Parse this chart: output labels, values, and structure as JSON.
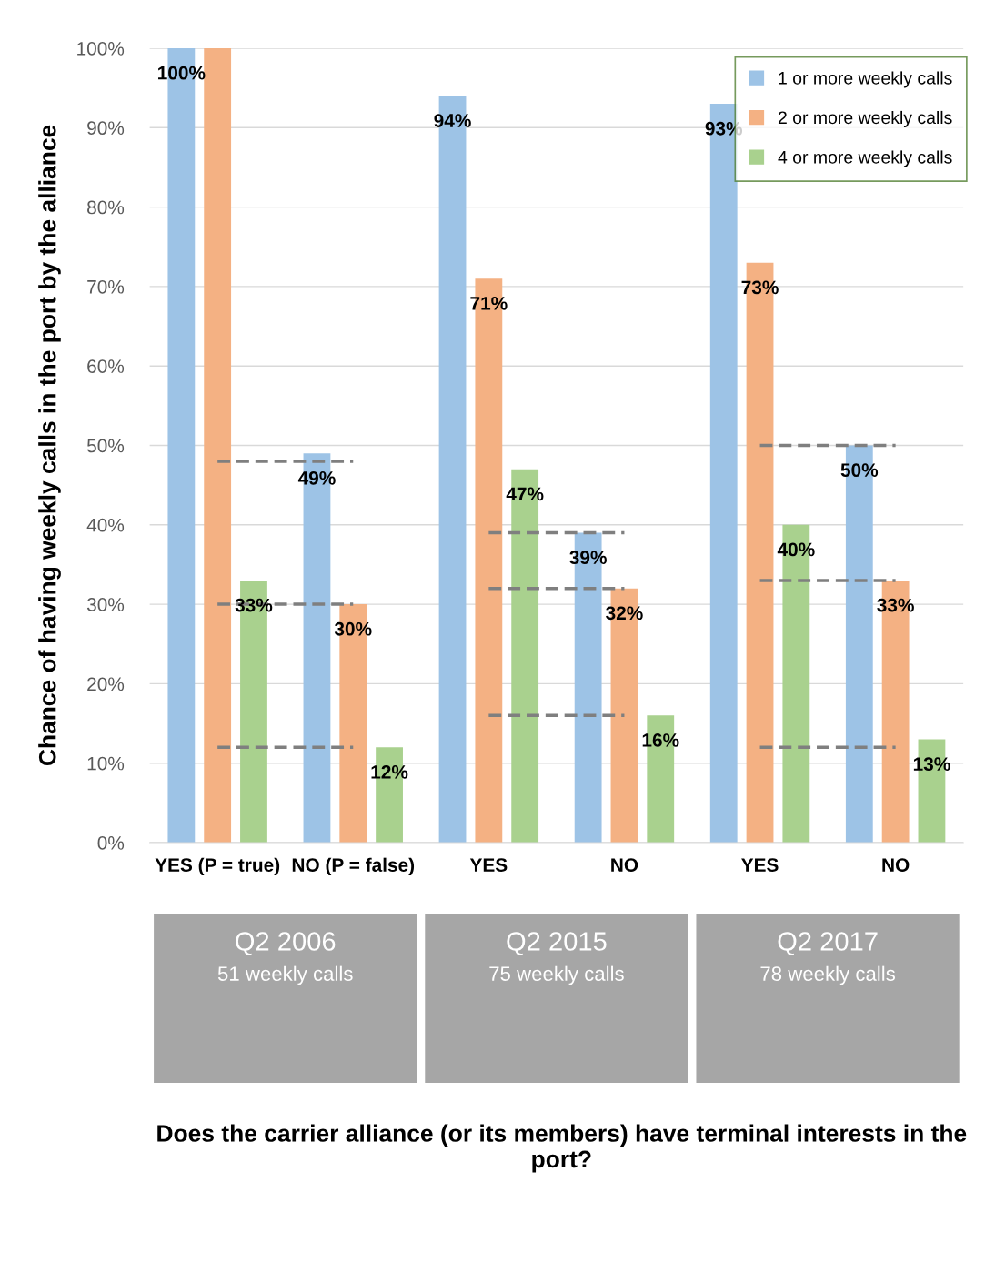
{
  "chart_data": {
    "type": "bar",
    "ylabel": "Chance of having weekly calls in the port by the alliance",
    "categories": [
      "YES (P = true)",
      "NO (P = false)",
      "YES",
      "NO",
      "YES",
      "NO"
    ],
    "series": [
      {
        "name": "1 or more weekly calls",
        "color": "#9dc3e6",
        "values": [
          100,
          49,
          94,
          39,
          93,
          50
        ],
        "value_labels": [
          "100%",
          "49%",
          "94%",
          "39%",
          "93%",
          "50%"
        ]
      },
      {
        "name": "2 or more weekly calls",
        "color": "#f4b183",
        "values": [
          100,
          30,
          71,
          32,
          73,
          33
        ],
        "value_labels": [
          null,
          "30%",
          "71%",
          "32%",
          "73%",
          "33%"
        ]
      },
      {
        "name": "4 or more weekly calls",
        "color": "#a9d18e",
        "values": [
          33,
          12,
          47,
          16,
          40,
          13
        ],
        "value_labels": [
          "33%",
          "12%",
          "47%",
          "16%",
          "40%",
          "13%"
        ]
      },
      {
        "type": "line",
        "color": "#7f7f7f",
        "line_style": "dashed",
        "marker": "none",
        "values": [
          48,
          48,
          null,
          null,
          null,
          null
        ]
      },
      {
        "type": "line",
        "color": "#7f7f7f",
        "line_style": "dashed",
        "marker": "none",
        "values": [
          30,
          30,
          null,
          null,
          null,
          null
        ]
      },
      {
        "type": "line",
        "color": "#7f7f7f",
        "line_style": "dashed",
        "marker": "none",
        "values": [
          12,
          12,
          null,
          null,
          null,
          null
        ]
      },
      {
        "type": "line",
        "color": "#7f7f7f",
        "line_style": "dashed",
        "marker": "none",
        "values": [
          null,
          null,
          39,
          39,
          null,
          null
        ]
      },
      {
        "type": "line",
        "color": "#7f7f7f",
        "line_style": "dashed",
        "marker": "none",
        "values": [
          null,
          null,
          32,
          32,
          null,
          null
        ]
      },
      {
        "type": "line",
        "color": "#7f7f7f",
        "line_style": "dashed",
        "marker": "none",
        "values": [
          null,
          null,
          16,
          16,
          null,
          null
        ]
      },
      {
        "type": "line",
        "color": "#7f7f7f",
        "line_style": "dashed",
        "marker": "none",
        "values": [
          null,
          null,
          null,
          null,
          50,
          50
        ]
      },
      {
        "type": "line",
        "color": "#7f7f7f",
        "line_style": "dashed",
        "marker": "none",
        "values": [
          null,
          null,
          null,
          null,
          33,
          33
        ]
      },
      {
        "type": "line",
        "color": "#7f7f7f",
        "line_style": "dashed",
        "marker": "none",
        "values": [
          null,
          null,
          null,
          null,
          12,
          12
        ]
      }
    ],
    "ylim": [
      0,
      100
    ],
    "yticks": [
      {
        "value": 0,
        "label": "0%"
      },
      {
        "value": 10,
        "label": "10%"
      },
      {
        "value": 20,
        "label": "20%"
      },
      {
        "value": 30,
        "label": "30%"
      },
      {
        "value": 40,
        "label": "40%"
      },
      {
        "value": 50,
        "label": "50%"
      },
      {
        "value": 60,
        "label": "60%"
      },
      {
        "value": 70,
        "label": "70%"
      },
      {
        "value": 80,
        "label": "80%"
      },
      {
        "value": 90,
        "label": "90%"
      },
      {
        "value": 100,
        "label": "100%"
      }
    ],
    "grid": "y",
    "legend": "top right",
    "annotations": [
      "Q2 2006",
      "51 weekly calls",
      "Q2 2015",
      "75 weekly calls",
      "Q2 2017",
      "78 weekly calls",
      "Does the carrier alliance (or its members) have terminal interests in the port?"
    ]
  }
}
